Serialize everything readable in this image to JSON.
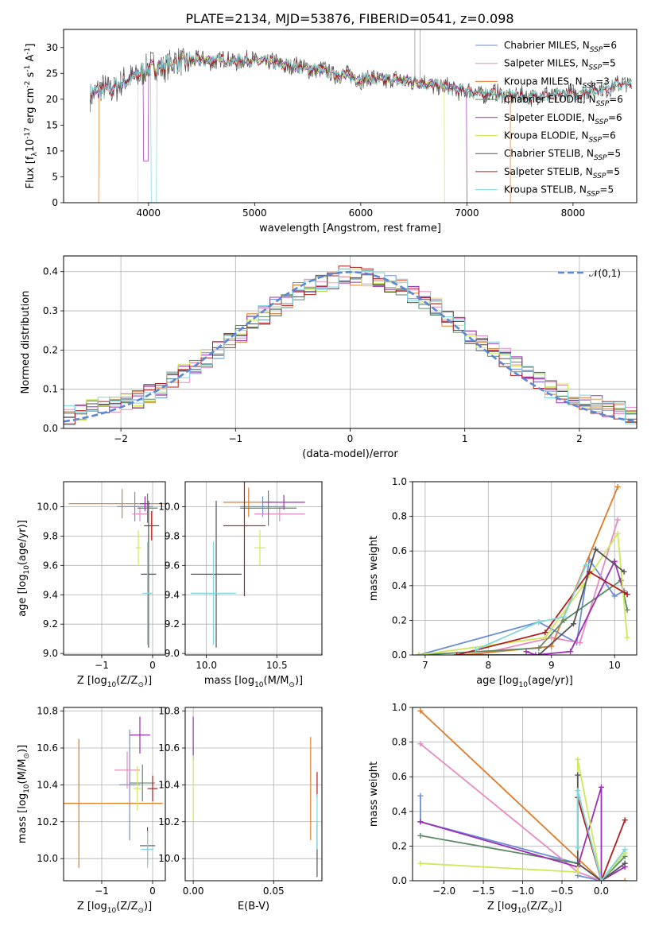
{
  "figure": {
    "title": "PLATE=2134, MJD=53876, FIBERID=0541, z=0.098"
  },
  "models": [
    {
      "label": "Chabrier MILES, N$_{SSP}$=6",
      "color": "#6b8fd6"
    },
    {
      "label": "Salpeter MILES, N$_{SSP}$=5",
      "color": "#e88bc1"
    },
    {
      "label": "Kroupa MILES, N$_{SSP}$=3",
      "color": "#e07b28"
    },
    {
      "label": "Chabrier ELODIE, N$_{SSP}$=6",
      "color": "#5b8a66"
    },
    {
      "label": "Salpeter ELODIE, N$_{SSP}$=6",
      "color": "#9d2fb5"
    },
    {
      "label": "Kroupa ELODIE, N$_{SSP}$=6",
      "color": "#cfe85a"
    },
    {
      "label": "Chabrier STELIB, N$_{SSP}$=5",
      "color": "#555555"
    },
    {
      "label": "Salpeter STELIB, N$_{SSP}$=5",
      "color": "#b01f1f"
    },
    {
      "label": "Kroupa STELIB, N$_{SSP}$=5",
      "color": "#7fd6dc"
    }
  ],
  "chart_data": [
    {
      "id": "spectrum",
      "type": "line",
      "xlabel": "wavelength [Angstrom, rest frame]",
      "ylabel": "Flux [f$_{\\lambda}$10$^{-17}$ erg cm$^{-2}$ s$^{-1}$ A$^{-1}$]",
      "xlim": [
        3200,
        8600
      ],
      "ylim": [
        0,
        33.5
      ],
      "xticks": [
        4000,
        5000,
        6000,
        7000,
        8000
      ],
      "yticks": [
        0,
        5,
        10,
        15,
        20,
        25,
        30
      ],
      "grid": false,
      "legend": "top-right",
      "continuum": {
        "x": [
          3450,
          3700,
          4000,
          4400,
          5000,
          5500,
          6000,
          6500,
          7000,
          7500,
          8000,
          8500
        ],
        "y": [
          21,
          22.5,
          26,
          27.5,
          27.5,
          26,
          24,
          23.5,
          21.5,
          20.5,
          21,
          23
        ]
      },
      "cutoffs": [
        {
          "series": 2,
          "x_start": 3530,
          "x_end": 7410
        },
        {
          "series": 5,
          "x_start": 3900,
          "x_end": 6790
        },
        {
          "series": 4,
          "x_start": 3450,
          "x_end": 7000
        }
      ]
    },
    {
      "id": "residuals",
      "type": "histogram",
      "xlabel": "(data-model)/error",
      "ylabel": "Normed distribution",
      "xlim": [
        -2.5,
        2.5
      ],
      "ylim": [
        0,
        0.44
      ],
      "xticks": [
        -2,
        -1,
        0,
        1,
        2
      ],
      "yticks": [
        0.0,
        0.1,
        0.2,
        0.3,
        0.4
      ],
      "grid": true,
      "legend": "top-right",
      "reference": {
        "label": "$\\mathcal{N}(0,1)$",
        "color": "#5b88d6",
        "style": "dashed"
      },
      "bin_edges": [
        -2.5,
        -2.4,
        -2.3,
        -2.2,
        -2.1,
        -2.0,
        -1.9,
        -1.8,
        -1.7,
        -1.6,
        -1.5,
        -1.4,
        -1.3,
        -1.2,
        -1.1,
        -1.0,
        -0.9,
        -0.8,
        -0.7,
        -0.6,
        -0.5,
        -0.4,
        -0.3,
        -0.2,
        -0.1,
        0.0,
        0.1,
        0.2,
        0.3,
        0.4,
        0.5,
        0.6,
        0.7,
        0.8,
        0.9,
        1.0,
        1.1,
        1.2,
        1.3,
        1.4,
        1.5,
        1.6,
        1.7,
        1.8,
        1.9,
        2.0,
        2.1,
        2.2,
        2.3,
        2.4,
        2.5
      ],
      "hist_base": [
        0.035,
        0.045,
        0.05,
        0.055,
        0.06,
        0.065,
        0.075,
        0.09,
        0.1,
        0.12,
        0.14,
        0.16,
        0.18,
        0.2,
        0.22,
        0.24,
        0.27,
        0.29,
        0.31,
        0.33,
        0.35,
        0.36,
        0.37,
        0.38,
        0.39,
        0.39,
        0.385,
        0.38,
        0.37,
        0.36,
        0.345,
        0.33,
        0.31,
        0.28,
        0.26,
        0.24,
        0.22,
        0.2,
        0.18,
        0.16,
        0.14,
        0.12,
        0.1,
        0.09,
        0.08,
        0.07,
        0.06,
        0.05,
        0.045,
        0.035
      ]
    },
    {
      "id": "age-vs-Z",
      "type": "errorbar",
      "xlabel": "Z [log$_{10}$(Z/Z$_\\odot$)]",
      "ylabel": "age  [log$_{10}$(age/yr)]",
      "xlim": [
        -1.75,
        0.25
      ],
      "ylim": [
        8.99,
        10.17
      ],
      "xticks": [
        -1,
        0
      ],
      "yticks": [
        9.0,
        9.2,
        9.4,
        9.6,
        9.8,
        10.0
      ],
      "grid": true,
      "points": [
        {
          "series": 0,
          "x": -0.35,
          "y": 10.0,
          "xerr": 0.35,
          "yerr": 0.1
        },
        {
          "series": 1,
          "x": -0.25,
          "y": 9.95,
          "xerr": 0.15,
          "yerr": 0.05
        },
        {
          "series": 2,
          "x": -0.6,
          "y": 10.02,
          "xerr": 1.05,
          "yerr": 0.1
        },
        {
          "series": 3,
          "x": -0.1,
          "y": 9.99,
          "xerr": 0.2,
          "yerr": 0.1
        },
        {
          "series": 4,
          "x": -0.15,
          "y": 10.02,
          "xerr": 0.1,
          "yerr": 0.05
        },
        {
          "series": 5,
          "x": -0.28,
          "y": 9.72,
          "xerr": 0.05,
          "yerr": 0.12
        },
        {
          "series": 6,
          "x": -0.08,
          "y": 9.54,
          "xerr": 0.15,
          "yerr": 0.5
        },
        {
          "series": 7,
          "x": -0.02,
          "y": 9.87,
          "xerr": 0.15,
          "yerr": 0.1
        },
        {
          "series": 8,
          "x": -0.1,
          "y": 9.41,
          "xerr": 0.1,
          "yerr": 0.35
        }
      ]
    },
    {
      "id": "age-vs-mass",
      "type": "errorbar",
      "xlabel": "mass [log$_{10}$(M/M$_\\odot$)]",
      "ylabel": "",
      "xlim": [
        9.85,
        10.82
      ],
      "ylim": [
        8.99,
        10.17
      ],
      "xticks": [
        10.0,
        10.5
      ],
      "yticks": [
        9.0,
        9.2,
        9.4,
        9.6,
        9.8,
        10.0
      ],
      "grid": true,
      "points": [
        {
          "series": 0,
          "x": 10.4,
          "y": 10.0,
          "xerr": 0.16,
          "yerr": 0.07
        },
        {
          "series": 1,
          "x": 10.52,
          "y": 9.95,
          "xerr": 0.18,
          "yerr": 0.05
        },
        {
          "series": 2,
          "x": 10.3,
          "y": 10.03,
          "xerr": 0.18,
          "yerr": 0.1
        },
        {
          "series": 3,
          "x": 10.44,
          "y": 9.99,
          "xerr": 0.2,
          "yerr": 0.12
        },
        {
          "series": 4,
          "x": 10.55,
          "y": 10.03,
          "xerr": 0.15,
          "yerr": 0.05
        },
        {
          "series": 5,
          "x": 10.38,
          "y": 9.72,
          "xerr": 0.04,
          "yerr": 0.12
        },
        {
          "series": 6,
          "x": 10.07,
          "y": 9.54,
          "xerr": 0.18,
          "yerr": 0.5
        },
        {
          "series": 7,
          "x": 10.27,
          "y": 9.87,
          "xerr": 0.15,
          "yerr": 0.48
        },
        {
          "series": 8,
          "x": 10.05,
          "y": 9.41,
          "xerr": 0.16,
          "yerr": 0.35
        }
      ]
    },
    {
      "id": "mass-weight-vs-age",
      "type": "line",
      "xlabel": "age  [log$_{10}$(age/yr)]",
      "ylabel": "mass weight",
      "xlim": [
        6.8,
        10.35
      ],
      "ylim": [
        0,
        1.0
      ],
      "xticks": [
        7,
        8,
        9,
        10
      ],
      "yticks": [
        0.0,
        0.2,
        0.4,
        0.6,
        0.8,
        1.0
      ],
      "grid": true,
      "series": [
        {
          "series": 0,
          "x": [
            6.9,
            8.8,
            9.4,
            9.6,
            10.0,
            10.15
          ],
          "y": [
            0.0,
            0.19,
            0.07,
            0.55,
            0.34,
            0.37
          ]
        },
        {
          "series": 1,
          "x": [
            7.8,
            9.0,
            9.45,
            10.05
          ],
          "y": [
            0.0,
            0.1,
            0.07,
            0.78
          ]
        },
        {
          "series": 2,
          "x": [
            7.6,
            9.0,
            10.05
          ],
          "y": [
            0.0,
            0.05,
            0.97
          ]
        },
        {
          "series": 3,
          "x": [
            6.9,
            8.8,
            9.2,
            10.1,
            10.2
          ],
          "y": [
            0.0,
            0.04,
            0.2,
            0.43,
            0.26
          ]
        },
        {
          "series": 4,
          "x": [
            8.6,
            8.75,
            9.3,
            10.0,
            10.15,
            10.2
          ],
          "y": [
            0.02,
            0.0,
            0.02,
            0.54,
            0.36,
            0.35
          ]
        },
        {
          "series": 5,
          "x": [
            6.9,
            8.9,
            9.5,
            10.05,
            10.2
          ],
          "y": [
            0.0,
            0.1,
            0.4,
            0.7,
            0.1
          ]
        },
        {
          "series": 6,
          "x": [
            7.5,
            8.8,
            9.35,
            9.7,
            10.15
          ],
          "y": [
            0.0,
            0.0,
            0.18,
            0.61,
            0.48
          ]
        },
        {
          "series": 7,
          "x": [
            7.5,
            8.9,
            9.6,
            10.2
          ],
          "y": [
            0.0,
            0.13,
            0.48,
            0.35
          ]
        },
        {
          "series": 8,
          "x": [
            7.8,
            8.8,
            9.2,
            9.55
          ],
          "y": [
            0.03,
            0.19,
            0.22,
            0.52
          ]
        }
      ]
    },
    {
      "id": "mass-vs-Z",
      "type": "errorbar",
      "xlabel": "Z [log$_{10}$(Z/Z$_\\odot$)]",
      "ylabel": "mass [log$_{10}$(M/M$_\\odot$)]",
      "xlim": [
        -1.75,
        0.25
      ],
      "ylim": [
        9.88,
        10.82
      ],
      "xticks": [
        -1,
        0
      ],
      "yticks": [
        10.0,
        10.2,
        10.4,
        10.6,
        10.8
      ],
      "grid": true,
      "points": [
        {
          "series": 0,
          "x": -0.45,
          "y": 10.4,
          "xerr": 0.2,
          "yerr": 0.3
        },
        {
          "series": 1,
          "x": -0.5,
          "y": 10.48,
          "xerr": 0.25,
          "yerr": 0.1
        },
        {
          "series": 2,
          "x": -1.45,
          "y": 10.3,
          "xerr": 1.65,
          "yerr": 0.35
        },
        {
          "series": 3,
          "x": -0.2,
          "y": 10.41,
          "xerr": 0.25,
          "yerr": 0.1
        },
        {
          "series": 4,
          "x": -0.25,
          "y": 10.67,
          "xerr": 0.2,
          "yerr": 0.1
        },
        {
          "series": 5,
          "x": -0.3,
          "y": 10.38,
          "xerr": 0.08,
          "yerr": 0.12
        },
        {
          "series": 6,
          "x": -0.1,
          "y": 10.07,
          "xerr": 0.15,
          "yerr": 0.1
        },
        {
          "series": 7,
          "x": 0.0,
          "y": 10.38,
          "xerr": 0.1,
          "yerr": 0.07
        },
        {
          "series": 8,
          "x": -0.1,
          "y": 10.05,
          "xerr": 0.12,
          "yerr": 0.1
        }
      ]
    },
    {
      "id": "mass-vs-ebv",
      "type": "errorbar",
      "xlabel": "E(B-V)",
      "ylabel": "",
      "xlim": [
        -0.005,
        0.08
      ],
      "ylim": [
        9.88,
        10.82
      ],
      "xticks": [
        0.0,
        0.05
      ],
      "yticks": [
        10.0,
        10.2,
        10.4,
        10.6,
        10.8
      ],
      "grid": true,
      "points": [
        {
          "series": 4,
          "x": 0.0,
          "y": 10.65,
          "xerr": 0,
          "yerr": 0.12
        },
        {
          "series": 5,
          "x": 0.0,
          "y": 10.38,
          "xerr": 0,
          "yerr": 0.18
        },
        {
          "series": 2,
          "x": 0.073,
          "y": 10.38,
          "xerr": 0,
          "yerr": 0.28
        },
        {
          "series": 7,
          "x": 0.077,
          "y": 10.4,
          "xerr": 0,
          "yerr": 0.07
        },
        {
          "series": 6,
          "x": 0.077,
          "y": 10.05,
          "xerr": 0,
          "yerr": 0.15
        },
        {
          "series": 8,
          "x": 0.077,
          "y": 10.2,
          "xerr": 0,
          "yerr": 0.15
        }
      ]
    },
    {
      "id": "mass-weight-vs-Z",
      "type": "line",
      "xlabel": "Z [log$_{10}$(Z/Z$_\\odot$)]",
      "ylabel": "mass weight",
      "xlim": [
        -2.4,
        0.45
      ],
      "ylim": [
        0,
        1.0
      ],
      "xticks": [
        -2.0,
        -1.5,
        -1.0,
        -0.5,
        0.0
      ],
      "yticks": [
        0.0,
        0.2,
        0.4,
        0.6,
        0.8,
        1.0
      ],
      "grid": true,
      "series": [
        {
          "series": 0,
          "x": [
            -2.3,
            -2.3,
            -0.3,
            -0.3,
            0.0,
            0.3
          ],
          "y": [
            0.49,
            0.34,
            0.1,
            0.03,
            0.0,
            0.1
          ]
        },
        {
          "series": 1,
          "x": [
            -2.3,
            -0.3,
            0.0,
            0.3
          ],
          "y": [
            0.79,
            0.05,
            0.0,
            0.08
          ]
        },
        {
          "series": 2,
          "x": [
            -2.3,
            0.0,
            0.3
          ],
          "y": [
            0.98,
            0.0,
            0.0
          ]
        },
        {
          "series": 3,
          "x": [
            -2.3,
            -0.3,
            0.0,
            0.3
          ],
          "y": [
            0.26,
            0.1,
            0.0,
            0.14
          ]
        },
        {
          "series": 4,
          "x": [
            -2.3,
            -0.3,
            0.0,
            0.0,
            0.3
          ],
          "y": [
            0.34,
            0.08,
            0.54,
            0.0,
            0.08
          ]
        },
        {
          "series": 5,
          "x": [
            -2.3,
            -0.3,
            -0.3,
            0.0,
            0.3
          ],
          "y": [
            0.1,
            0.05,
            0.7,
            0.0,
            0.16
          ]
        },
        {
          "series": 6,
          "x": [
            -0.3,
            -0.3,
            0.0,
            0.3
          ],
          "y": [
            0.61,
            0.1,
            0.0,
            0.1
          ]
        },
        {
          "series": 7,
          "x": [
            -0.3,
            0.0,
            0.3
          ],
          "y": [
            0.48,
            0.0,
            0.35
          ]
        },
        {
          "series": 8,
          "x": [
            -0.3,
            -0.3,
            0.0,
            0.3
          ],
          "y": [
            0.19,
            0.52,
            0.0,
            0.18
          ]
        }
      ]
    }
  ]
}
